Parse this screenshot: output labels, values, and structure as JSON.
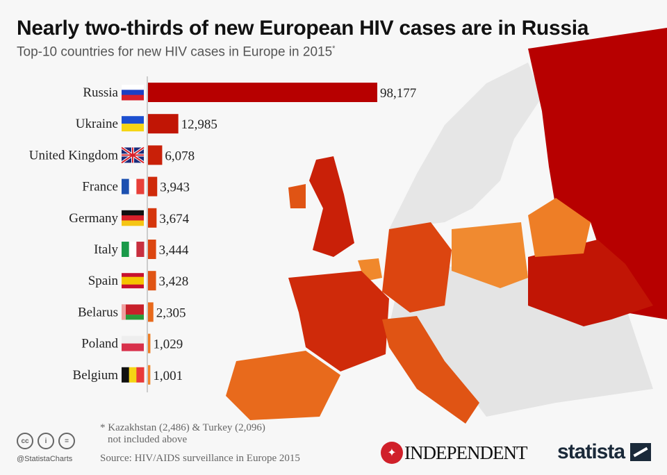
{
  "title": "Nearly two-thirds of new European HIV cases are in Russia",
  "subtitle": "Top-10 countries for new HIV cases in Europe in 2015",
  "subtitle_mark": "*",
  "chart_data": {
    "type": "bar",
    "orientation": "horizontal",
    "title": "Nearly two-thirds of new European HIV cases are in Russia",
    "subtitle": "Top-10 countries for new HIV cases in Europe in 2015*",
    "categories": [
      "Russia",
      "Ukraine",
      "United Kingdom",
      "France",
      "Germany",
      "Italy",
      "Spain",
      "Belarus",
      "Poland",
      "Belgium"
    ],
    "values": [
      98177,
      12985,
      6078,
      3943,
      3674,
      3444,
      3428,
      2305,
      1029,
      1001
    ],
    "value_labels": [
      "98,177",
      "12,985",
      "6,078",
      "3,943",
      "3,674",
      "3,444",
      "3,428",
      "2,305",
      "1,029",
      "1,001"
    ],
    "flags": [
      "russia-flag",
      "ukraine-flag",
      "uk-flag",
      "france-flag",
      "germany-flag",
      "italy-flag",
      "spain-flag",
      "belarus-flag",
      "poland-flag",
      "belgium-flag"
    ],
    "bar_colors": [
      "#b70000",
      "#c11505",
      "#c92008",
      "#cf2a0a",
      "#d5360c",
      "#dc4510",
      "#e05414",
      "#e86a1c",
      "#ee7e26",
      "#f0882c"
    ],
    "grid": false,
    "legend": "none"
  },
  "footnote": {
    "line1": "* Kazakhstan (2,486) & Turkey (2,096)",
    "line2": "not included above"
  },
  "source": "Source: HIV/AIDS surveillance in Europe 2015",
  "handle": "@StatistaCharts",
  "logos": {
    "independent": "INDEPENDENT",
    "statista": "statista"
  },
  "license_icons": [
    "cc",
    "by",
    "nd"
  ]
}
